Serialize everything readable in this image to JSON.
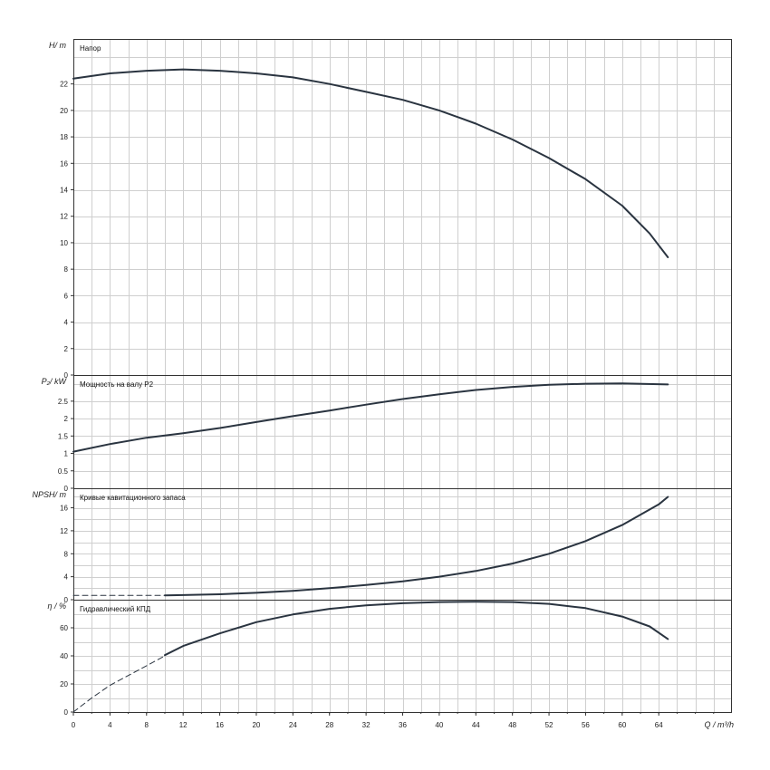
{
  "chart_data": {
    "type": "line",
    "x_axis": {
      "label": "Q / m³/h",
      "range": [
        0,
        72
      ],
      "major_step": 4,
      "minor_step": 2,
      "tick_labels": [
        "0",
        "4",
        "8",
        "12",
        "16",
        "20",
        "24",
        "28",
        "32",
        "36",
        "40",
        "44",
        "48",
        "52",
        "56",
        "60",
        "64"
      ]
    },
    "panels": [
      {
        "id": "head",
        "title": "Напор",
        "ylabel": "H/ m",
        "ylim": [
          0,
          25.4
        ],
        "major_step": 2,
        "tick_labels": [
          "0",
          "2",
          "4",
          "6",
          "8",
          "10",
          "12",
          "14",
          "16",
          "18",
          "20",
          "22"
        ],
        "series": [
          {
            "style": "solid",
            "points": [
              [
                0,
                22.4
              ],
              [
                4,
                22.8
              ],
              [
                8,
                23.0
              ],
              [
                12,
                23.1
              ],
              [
                16,
                23.0
              ],
              [
                20,
                22.8
              ],
              [
                24,
                22.5
              ],
              [
                28,
                22.0
              ],
              [
                32,
                21.4
              ],
              [
                36,
                20.8
              ],
              [
                40,
                20.0
              ],
              [
                44,
                19.0
              ],
              [
                48,
                17.8
              ],
              [
                52,
                16.4
              ],
              [
                56,
                14.8
              ],
              [
                60,
                12.8
              ],
              [
                63,
                10.7
              ],
              [
                65,
                8.9
              ]
            ]
          }
        ]
      },
      {
        "id": "power",
        "title": "Мощность на валу P2",
        "ylabel": "P₂/ kW",
        "ylim": [
          0,
          3.25
        ],
        "major_step": 0.5,
        "tick_labels": [
          "0",
          "0.5",
          "1",
          "1.5",
          "2",
          "2.5"
        ],
        "series": [
          {
            "style": "solid",
            "points": [
              [
                0,
                1.05
              ],
              [
                4,
                1.27
              ],
              [
                8,
                1.45
              ],
              [
                12,
                1.58
              ],
              [
                16,
                1.73
              ],
              [
                20,
                1.9
              ],
              [
                24,
                2.07
              ],
              [
                28,
                2.23
              ],
              [
                32,
                2.4
              ],
              [
                36,
                2.56
              ],
              [
                40,
                2.7
              ],
              [
                44,
                2.82
              ],
              [
                48,
                2.91
              ],
              [
                52,
                2.97
              ],
              [
                56,
                3.0
              ],
              [
                60,
                3.01
              ],
              [
                65,
                2.98
              ]
            ]
          }
        ]
      },
      {
        "id": "npsh",
        "title": "Кривые кавитационного запаса",
        "ylabel": "NPSH/ m",
        "ylim": [
          0,
          19.4
        ],
        "major_step": 2,
        "tick_labels": [
          "0",
          "4",
          "8",
          "12",
          "16"
        ],
        "series": [
          {
            "style": "dashed",
            "points": [
              [
                0,
                0.75
              ],
              [
                4,
                0.75
              ],
              [
                8,
                0.75
              ],
              [
                10,
                0.75
              ]
            ]
          },
          {
            "style": "solid",
            "points": [
              [
                10,
                0.75
              ],
              [
                12,
                0.8
              ],
              [
                16,
                0.95
              ],
              [
                20,
                1.2
              ],
              [
                24,
                1.55
              ],
              [
                28,
                2.0
              ],
              [
                32,
                2.55
              ],
              [
                36,
                3.2
              ],
              [
                40,
                4.0
              ],
              [
                44,
                5.0
              ],
              [
                48,
                6.3
              ],
              [
                52,
                8.0
              ],
              [
                56,
                10.2
              ],
              [
                60,
                13.0
              ],
              [
                64,
                16.6
              ],
              [
                65,
                17.9
              ]
            ]
          }
        ]
      },
      {
        "id": "efficiency",
        "title": "Гидравлический КПД",
        "ylabel": "η / %",
        "ylim": [
          0,
          80
        ],
        "major_step": 10,
        "tick_labels": [
          "0",
          "20",
          "40",
          "60"
        ],
        "series": [
          {
            "style": "dashed",
            "points": [
              [
                0,
                0
              ],
              [
                2,
                10
              ],
              [
                4,
                19
              ],
              [
                6,
                26
              ],
              [
                8,
                33
              ],
              [
                10,
                40
              ]
            ]
          },
          {
            "style": "solid",
            "points": [
              [
                10,
                40.5
              ],
              [
                12,
                47
              ],
              [
                16,
                56
              ],
              [
                20,
                64
              ],
              [
                24,
                69.5
              ],
              [
                28,
                73.5
              ],
              [
                32,
                76
              ],
              [
                36,
                77.5
              ],
              [
                40,
                78.3
              ],
              [
                44,
                78.5
              ],
              [
                48,
                78.3
              ],
              [
                52,
                77
              ],
              [
                56,
                74
              ],
              [
                60,
                68
              ],
              [
                63,
                61
              ],
              [
                65,
                52
              ]
            ]
          }
        ]
      }
    ],
    "grid": true,
    "legend": "none"
  }
}
